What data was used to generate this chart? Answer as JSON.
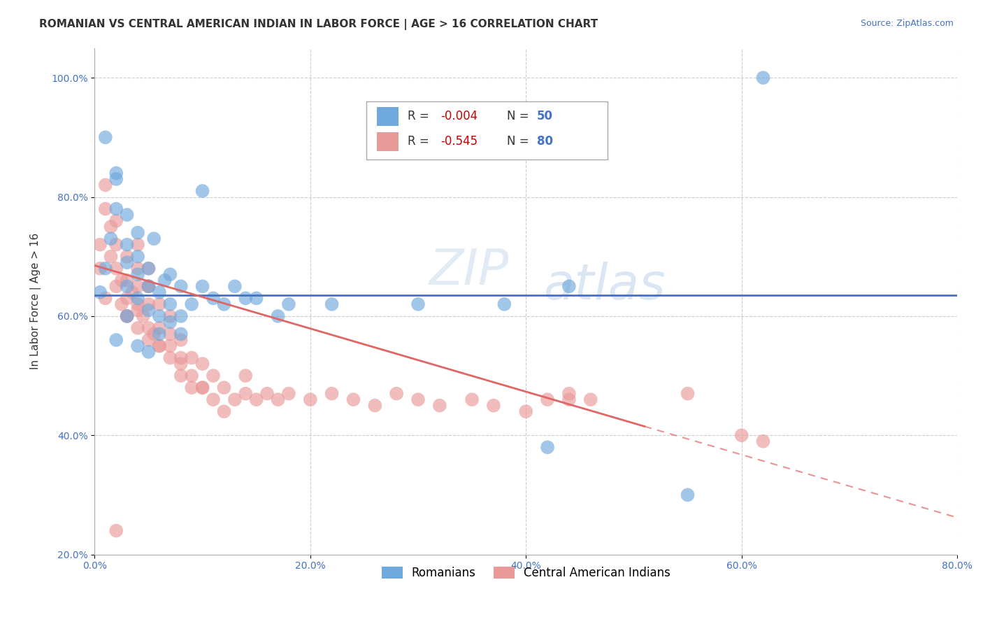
{
  "title": "ROMANIAN VS CENTRAL AMERICAN INDIAN IN LABOR FORCE | AGE > 16 CORRELATION CHART",
  "source": "Source: ZipAtlas.com",
  "ylabel": "In Labor Force | Age > 16",
  "xlim": [
    0.0,
    0.8
  ],
  "ylim": [
    0.2,
    1.05
  ],
  "xticks": [
    0.0,
    0.2,
    0.4,
    0.6,
    0.8
  ],
  "xticklabels": [
    "0.0%",
    "20.0%",
    "40.0%",
    "60.0%",
    "80.0%"
  ],
  "yticks": [
    0.2,
    0.4,
    0.6,
    0.8,
    1.0
  ],
  "yticklabels": [
    "20.0%",
    "40.0%",
    "60.0%",
    "80.0%",
    "100.0%"
  ],
  "color_romanian": "#6fa8dc",
  "color_central": "#ea9999",
  "color_trend_romanian": "#4472c4",
  "color_trend_central_solid": "#e06666",
  "color_trend_central_dash": "#e06666",
  "romanian_x": [
    0.005,
    0.01,
    0.01,
    0.015,
    0.02,
    0.02,
    0.02,
    0.03,
    0.03,
    0.03,
    0.03,
    0.04,
    0.04,
    0.04,
    0.04,
    0.05,
    0.05,
    0.05,
    0.055,
    0.06,
    0.06,
    0.065,
    0.07,
    0.07,
    0.08,
    0.08,
    0.09,
    0.1,
    0.11,
    0.12,
    0.13,
    0.14,
    0.15,
    0.17,
    0.18,
    0.22,
    0.3,
    0.38,
    0.42,
    0.44,
    0.55,
    0.62,
    0.1,
    0.06,
    0.07,
    0.08,
    0.05,
    0.04,
    0.03,
    0.02
  ],
  "romanian_y": [
    0.64,
    0.9,
    0.68,
    0.73,
    0.84,
    0.78,
    0.83,
    0.69,
    0.72,
    0.65,
    0.77,
    0.63,
    0.67,
    0.7,
    0.74,
    0.61,
    0.65,
    0.68,
    0.73,
    0.6,
    0.64,
    0.66,
    0.62,
    0.67,
    0.6,
    0.65,
    0.62,
    0.65,
    0.63,
    0.62,
    0.65,
    0.63,
    0.63,
    0.6,
    0.62,
    0.62,
    0.62,
    0.62,
    0.38,
    0.65,
    0.3,
    1.0,
    0.81,
    0.57,
    0.59,
    0.57,
    0.54,
    0.55,
    0.6,
    0.56
  ],
  "central_x": [
    0.005,
    0.005,
    0.01,
    0.01,
    0.01,
    0.015,
    0.015,
    0.02,
    0.02,
    0.02,
    0.02,
    0.025,
    0.025,
    0.03,
    0.03,
    0.03,
    0.03,
    0.035,
    0.04,
    0.04,
    0.04,
    0.04,
    0.04,
    0.045,
    0.05,
    0.05,
    0.05,
    0.05,
    0.05,
    0.055,
    0.06,
    0.06,
    0.06,
    0.07,
    0.07,
    0.07,
    0.08,
    0.08,
    0.09,
    0.09,
    0.1,
    0.1,
    0.11,
    0.11,
    0.12,
    0.12,
    0.13,
    0.14,
    0.14,
    0.15,
    0.16,
    0.17,
    0.18,
    0.2,
    0.22,
    0.24,
    0.26,
    0.28,
    0.3,
    0.32,
    0.35,
    0.37,
    0.4,
    0.42,
    0.44,
    0.44,
    0.46,
    0.55,
    0.6,
    0.62,
    0.08,
    0.09,
    0.1,
    0.06,
    0.07,
    0.08,
    0.05,
    0.04,
    0.03,
    0.02
  ],
  "central_y": [
    0.68,
    0.72,
    0.78,
    0.82,
    0.63,
    0.7,
    0.75,
    0.65,
    0.68,
    0.72,
    0.76,
    0.62,
    0.66,
    0.6,
    0.63,
    0.66,
    0.7,
    0.64,
    0.58,
    0.61,
    0.65,
    0.68,
    0.72,
    0.6,
    0.56,
    0.58,
    0.62,
    0.65,
    0.68,
    0.57,
    0.55,
    0.58,
    0.62,
    0.53,
    0.57,
    0.6,
    0.52,
    0.56,
    0.5,
    0.53,
    0.48,
    0.52,
    0.46,
    0.5,
    0.44,
    0.48,
    0.46,
    0.47,
    0.5,
    0.46,
    0.47,
    0.46,
    0.47,
    0.46,
    0.47,
    0.46,
    0.45,
    0.47,
    0.46,
    0.45,
    0.46,
    0.45,
    0.44,
    0.46,
    0.46,
    0.47,
    0.46,
    0.47,
    0.4,
    0.39,
    0.5,
    0.48,
    0.48,
    0.55,
    0.55,
    0.53,
    0.65,
    0.62,
    0.6,
    0.24
  ],
  "trend_rom_x0": 0.0,
  "trend_rom_x1": 0.8,
  "trend_rom_y0": 0.635,
  "trend_rom_y1": 0.635,
  "trend_cen_x0": 0.0,
  "trend_cen_x1": 0.51,
  "trend_cen_y0": 0.685,
  "trend_cen_y1": 0.415,
  "trend_cen_dash_x0": 0.51,
  "trend_cen_dash_x1": 0.8,
  "trend_cen_dash_y0": 0.415,
  "trend_cen_dash_y1": 0.262
}
